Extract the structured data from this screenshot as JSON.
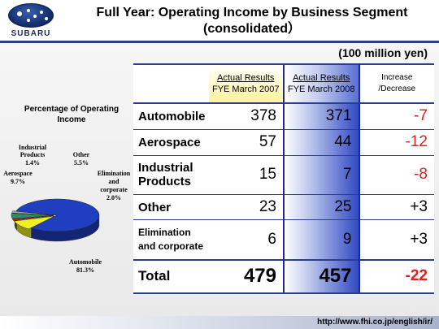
{
  "brand": {
    "name": "SUBARU"
  },
  "title": {
    "line1": "Full Year: Operating Income by Business Segment",
    "line2": "(consolidated）"
  },
  "unit": "(100 million yen)",
  "table": {
    "headers": {
      "col07_line1": "Actual Results",
      "col07_line2": "FYE March 2007",
      "col08_line1": "Actual Results",
      "col08_line2": "FYE March 2008",
      "change_line1": "Increase",
      "change_line2": "/Decrease"
    },
    "rows": [
      {
        "label_line1": "Automobile",
        "label_line2": "",
        "fy2007": "378",
        "fy2008": "371",
        "change": "-7"
      },
      {
        "label_line1": "Aerospace",
        "label_line2": "",
        "fy2007": "57",
        "fy2008": "44",
        "change": "-12"
      },
      {
        "label_line1": "Industrial",
        "label_line2": "Products",
        "fy2007": "15",
        "fy2008": "7",
        "change": "-8"
      },
      {
        "label_line1": "Other",
        "label_line2": "",
        "fy2007": "23",
        "fy2008": "25",
        "change": "+3"
      },
      {
        "label_line1": "Elimination",
        "label_line2": "and corporate",
        "fy2007": "6",
        "fy2008": "9",
        "change": "+3"
      }
    ],
    "total": {
      "label": "Total",
      "fy2007": "479",
      "fy2008": "457",
      "change": "-22"
    }
  },
  "chart_data": {
    "type": "pie",
    "title": "Percentage of Operating Income",
    "slices": [
      {
        "name": "Automobile",
        "value": 81.3,
        "label": "81.3%",
        "color": "#1f3fc0"
      },
      {
        "name": "Aerospace",
        "value": 9.7,
        "label": "9.7%",
        "color": "#f0f020"
      },
      {
        "name": "Industrial Products",
        "value": 1.4,
        "label": "1.4%",
        "color": "#e02020"
      },
      {
        "name": "Other",
        "value": 5.5,
        "label": "5.5%",
        "color": "#2a8a6a"
      },
      {
        "name": "Elimination and corporate",
        "value": 2.0,
        "label": "2.0%",
        "color": "#a8a8a8"
      }
    ]
  },
  "pie_labels": {
    "automobile_name": "Automobile",
    "automobile_pct": "81.3%",
    "aerospace_name": "Aerospace",
    "aerospace_pct": "9.7%",
    "industrial_name1": "Industrial",
    "industrial_name2": "Products",
    "industrial_pct": "1.4%",
    "other_name": "Other",
    "other_pct": "5.5%",
    "elim_name1": "Elimination",
    "elim_name2": "and",
    "elim_name3": "corporate",
    "elim_pct": "2.0%"
  },
  "footer": {
    "url": "http://www.fhi.co.jp/english/ir/"
  }
}
